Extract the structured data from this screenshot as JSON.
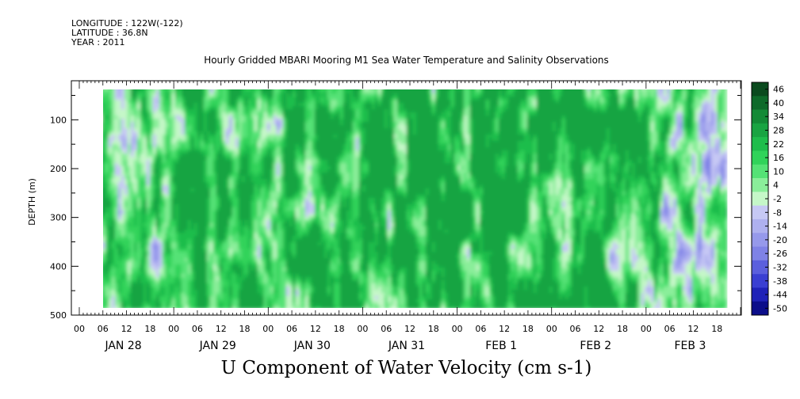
{
  "header": {
    "longitude": "LONGITUDE : 122W(-122)",
    "latitude": "LATITUDE : 36.8N",
    "year": "YEAR : 2011"
  },
  "chart_data": {
    "type": "heatmap",
    "title": "Hourly Gridded MBARI Mooring M1 Sea Water Temperature and Salinity Observations",
    "subtitle": "U Component of Water Velocity (cm s-1)",
    "ylabel": "DEPTH (m)",
    "y_ticks": [
      100,
      200,
      300,
      400,
      500
    ],
    "ylim": [
      500,
      20
    ],
    "x_hour_labels": [
      "00",
      "06",
      "12",
      "18",
      "00",
      "06",
      "12",
      "18",
      "00",
      "06",
      "12",
      "18",
      "00",
      "06",
      "12",
      "18",
      "00",
      "06",
      "12",
      "18",
      "00",
      "06",
      "12",
      "18",
      "00",
      "06",
      "12",
      "18"
    ],
    "x_day_labels": [
      "JAN 28",
      "JAN 29",
      "JAN 30",
      "JAN 31",
      "FEB  1",
      "FEB  2",
      "FEB  3"
    ],
    "data_start_hour": 5,
    "data_end_hour": 164,
    "data_depth_range": [
      20,
      485
    ],
    "colorbar": {
      "labels": [
        "46",
        "40",
        "34",
        "28",
        "22",
        "16",
        "10",
        "4",
        "-2",
        "-8",
        "-14",
        "-20",
        "-26",
        "-32",
        "-38",
        "-44",
        "-50"
      ],
      "colors": [
        "#0a4a1e",
        "#0e6a2a",
        "#138a36",
        "#19a442",
        "#1fbd4c",
        "#30d35a",
        "#55e276",
        "#8aee9a",
        "#c5f7c8",
        "#c6c8f4",
        "#aeb0ef",
        "#9699eb",
        "#7f82e6",
        "#5b5fdd",
        "#3a3fd2",
        "#1f22b8",
        "#0c0e8a"
      ]
    },
    "grid": false
  }
}
